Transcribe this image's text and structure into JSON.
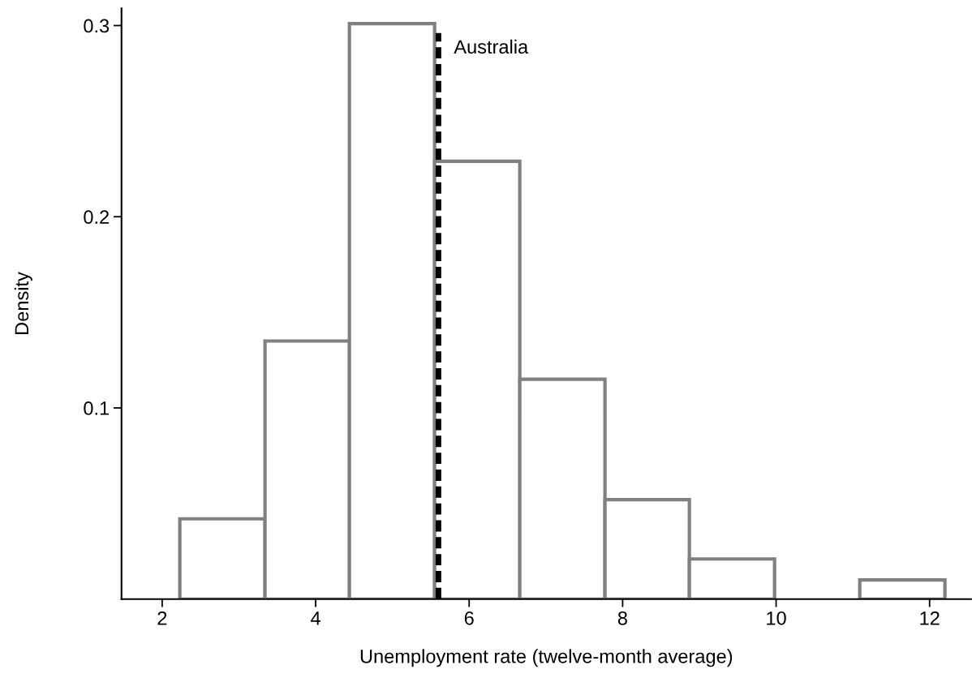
{
  "chart_data": {
    "type": "histogram",
    "xlabel": "Unemployment rate (twelve-month average)",
    "ylabel": "Density",
    "bins": [
      2.23,
      3.34,
      4.44,
      5.55,
      6.66,
      7.77,
      8.87,
      9.98,
      11.09,
      12.2
    ],
    "values": [
      0.042,
      0.135,
      0.301,
      0.229,
      0.115,
      0.052,
      0.021,
      0,
      0.01
    ],
    "color": "#808080",
    "xlim": [
      1.47,
      12.54
    ],
    "xticks": [
      2,
      4,
      6,
      8,
      10,
      12
    ],
    "ylim": [
      0,
      0.309
    ],
    "yticks": [
      0.1,
      0.2,
      0.3
    ],
    "ref_lines": [
      {
        "axis": "x",
        "value": 5.6,
        "label": "Australia",
        "color": "#000000",
        "line_style": "dashed"
      }
    ],
    "grid": false,
    "legend": false
  }
}
